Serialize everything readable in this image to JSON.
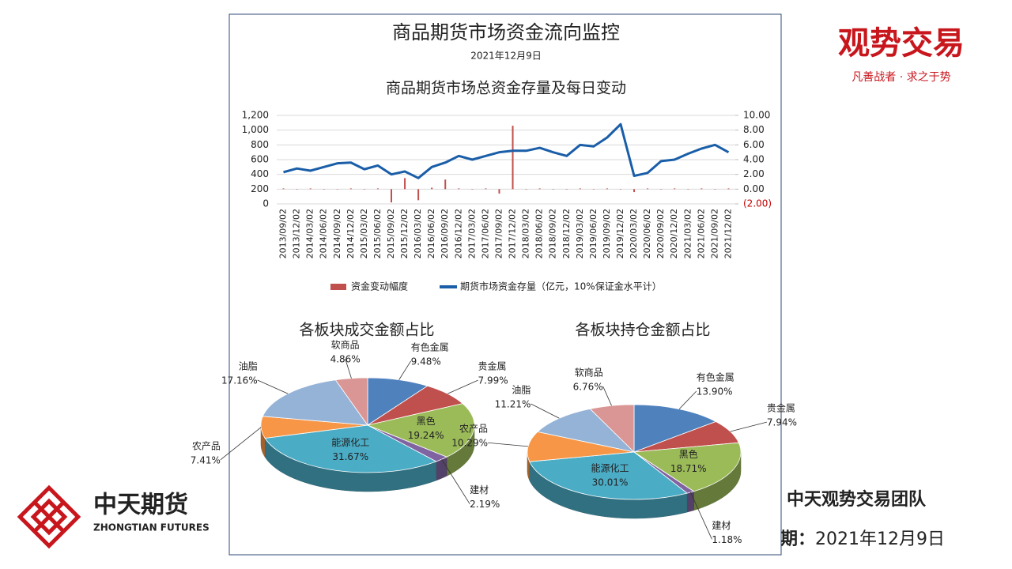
{
  "panel": {
    "title": "商品期货市场资金流向监控",
    "date": "2021年12月9日"
  },
  "brand": {
    "name": "观势交易",
    "slogan": "凡善战者 · 求之于势"
  },
  "company": {
    "name": "中天期货",
    "english": "ZHONGTIAN FUTURES"
  },
  "footer": {
    "team": "中天观势交易团队",
    "date_label": "日期：",
    "date": "2021年12月9日"
  },
  "chart_data": [
    {
      "type": "combo",
      "title": "商品期货市场总资金存量及每日变动",
      "categories": [
        "2013/09/02",
        "2013/12/02",
        "2014/03/02",
        "2014/06/02",
        "2014/09/02",
        "2014/12/02",
        "2015/03/02",
        "2015/06/02",
        "2015/09/02",
        "2015/12/02",
        "2016/03/02",
        "2016/06/02",
        "2016/09/02",
        "2016/12/02",
        "2017/03/02",
        "2017/06/02",
        "2017/09/02",
        "2017/12/02",
        "2018/03/02",
        "2018/06/02",
        "2018/09/02",
        "2018/12/02",
        "2019/03/02",
        "2019/06/02",
        "2019/09/02",
        "2019/12/02",
        "2020/03/02",
        "2020/06/02",
        "2020/09/02",
        "2020/12/02",
        "2021/03/02",
        "2021/06/02",
        "2021/09/02",
        "2021/12/02"
      ],
      "series": [
        {
          "name": "资金变动幅度",
          "type": "bar",
          "axis": "y2",
          "color": "#c0504d",
          "values": [
            0.1,
            0,
            0.1,
            0,
            0,
            0.1,
            0,
            0.1,
            -1.8,
            1.5,
            -1.5,
            0.2,
            1.3,
            0.1,
            0,
            0.1,
            -0.6,
            8.6,
            0,
            0.1,
            0,
            0,
            0.1,
            0,
            0.1,
            0,
            -0.4,
            0.1,
            0,
            0.1,
            0,
            0.1,
            0,
            0.1
          ]
        },
        {
          "name": "期货市场资金存量（亿元，10%保证金水平计）",
          "type": "line",
          "color": "#1a5ea8",
          "values": [
            430,
            480,
            450,
            500,
            550,
            560,
            470,
            520,
            400,
            440,
            350,
            500,
            560,
            650,
            600,
            650,
            700,
            720,
            720,
            760,
            700,
            650,
            800,
            780,
            900,
            1080,
            380,
            420,
            580,
            600,
            680,
            750,
            800,
            700
          ]
        }
      ],
      "ylim": [
        0,
        1200
      ],
      "yticks": [
        0,
        200,
        400,
        600,
        800,
        {
          "value": 1000,
          "label": "1,000"
        },
        {
          "value": 1200,
          "label": "1,200"
        }
      ],
      "y2lim": [
        -2,
        10
      ],
      "y2ticks": [
        {
          "value": -2,
          "label": "(2.00)"
        },
        {
          "value": 0,
          "label": "0.00"
        },
        {
          "value": 2,
          "label": "2.00"
        },
        {
          "value": 4,
          "label": "4.00"
        },
        {
          "value": 6,
          "label": "6.00"
        },
        {
          "value": 8,
          "label": "8.00"
        },
        {
          "value": 10,
          "label": "10.00"
        }
      ],
      "grid": true,
      "legend": "bottom"
    },
    {
      "type": "pie",
      "title": "各板块成交金额占比",
      "categories": [
        "有色金属",
        "贵金属",
        "黑色",
        "建材",
        "能源化工",
        "农产品",
        "油脂",
        "软商品"
      ],
      "values": [
        9.48,
        7.99,
        19.24,
        2.19,
        31.67,
        7.41,
        17.16,
        4.86
      ],
      "value_labels": [
        "9.48%",
        "7.99%",
        "19.24%",
        "2.19%",
        "31.67%",
        "7.41%",
        "17.16%",
        "4.86%"
      ],
      "colors": [
        "#4f81bd",
        "#c0504d",
        "#9bbb59",
        "#8064a2",
        "#4bacc6",
        "#f79646",
        "#95b3d7",
        "#d99694"
      ]
    },
    {
      "type": "pie",
      "title": "各板块持仓金额占比",
      "categories": [
        "有色金属",
        "贵金属",
        "黑色",
        "建材",
        "能源化工",
        "农产品",
        "油脂",
        "软商品"
      ],
      "values": [
        13.9,
        7.94,
        18.71,
        1.18,
        30.01,
        10.29,
        11.21,
        6.76
      ],
      "value_labels": [
        "13.90%",
        "7.94%",
        "18.71%",
        "1.18%",
        "30.01%",
        "10.29%",
        "11.21%",
        "6.76%"
      ],
      "colors": [
        "#4f81bd",
        "#c0504d",
        "#9bbb59",
        "#8064a2",
        "#4bacc6",
        "#f79646",
        "#95b3d7",
        "#d99694"
      ]
    }
  ]
}
